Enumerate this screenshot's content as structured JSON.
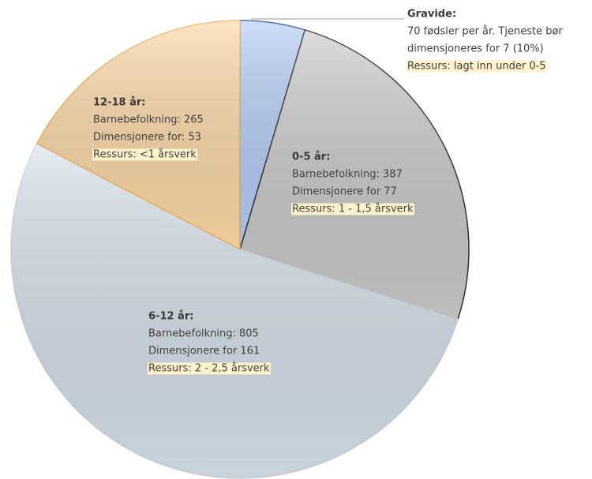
{
  "chart_data": {
    "type": "pie",
    "categories": [
      "Gravide:",
      "0-5 år:",
      "6-12 år:",
      "12-18 år:"
    ],
    "values": [
      70,
      387,
      805,
      265
    ],
    "colors": [
      "#b4cdf6",
      "#c9c9c9",
      "#d6e1eb",
      "#fdd9a6"
    ],
    "strokes": [
      "#2f5597",
      "#303030",
      "#c9d3dc",
      "#f4b060"
    ],
    "details": [
      [
        "70 fødsler per år. Tjeneste bør",
        "dimensjoneres for 7 (10%)",
        "Ressurs: lagt inn under 0-5"
      ],
      [
        "Barnebefolkning: 387",
        "Dimensjonere for 77",
        "Ressurs: 1 - 1,5 årsverk"
      ],
      [
        "Barnebefolkning: 805",
        "Dimensjonere for 161",
        "Ressurs: 2 - 2,5 årsverk"
      ],
      [
        "Barnebefolkning: 265",
        "Dimensjonere for: 53",
        "Ressurs: <1 årsverk"
      ]
    ]
  }
}
